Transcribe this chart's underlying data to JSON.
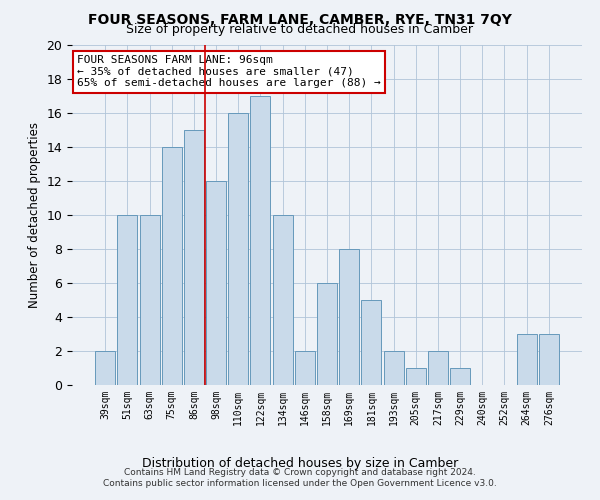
{
  "title": "FOUR SEASONS, FARM LANE, CAMBER, RYE, TN31 7QY",
  "subtitle": "Size of property relative to detached houses in Camber",
  "xlabel": "Distribution of detached houses by size in Camber",
  "ylabel": "Number of detached properties",
  "bar_labels": [
    "39sqm",
    "51sqm",
    "63sqm",
    "75sqm",
    "86sqm",
    "98sqm",
    "110sqm",
    "122sqm",
    "134sqm",
    "146sqm",
    "158sqm",
    "169sqm",
    "181sqm",
    "193sqm",
    "205sqm",
    "217sqm",
    "229sqm",
    "240sqm",
    "252sqm",
    "264sqm",
    "276sqm"
  ],
  "bar_values": [
    2,
    10,
    10,
    14,
    15,
    12,
    16,
    17,
    10,
    2,
    6,
    8,
    5,
    2,
    1,
    2,
    1,
    0,
    0,
    3,
    3
  ],
  "bar_color": "#c9daea",
  "bar_edgecolor": "#6699bb",
  "property_label": "FOUR SEASONS FARM LANE: 96sqm",
  "annotation_line1": "← 35% of detached houses are smaller (47)",
  "annotation_line2": "65% of semi-detached houses are larger (88) →",
  "vline_x_index": 5,
  "vline_color": "#cc0000",
  "ylim": [
    0,
    20
  ],
  "yticks": [
    0,
    2,
    4,
    6,
    8,
    10,
    12,
    14,
    16,
    18,
    20
  ],
  "footer1": "Contains HM Land Registry data © Crown copyright and database right 2024.",
  "footer2": "Contains public sector information licensed under the Open Government Licence v3.0.",
  "bg_color": "#eef2f7",
  "annotation_box_color": "#ffffff",
  "annotation_box_edge": "#cc0000"
}
